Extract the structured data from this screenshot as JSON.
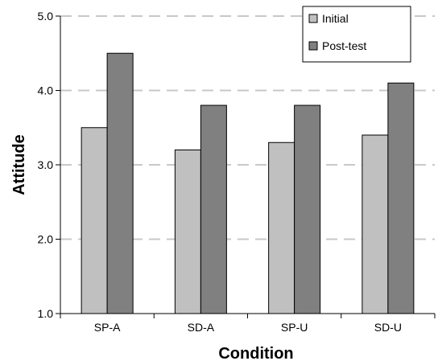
{
  "chart_data": {
    "type": "bar",
    "title": "",
    "xlabel": "Condition",
    "ylabel": "Attitude",
    "categories": [
      "SP-A",
      "SD-A",
      "SP-U",
      "SD-U"
    ],
    "series": [
      {
        "name": "Initial",
        "values": [
          3.5,
          3.2,
          3.3,
          3.4
        ],
        "color": "#c0c0c0"
      },
      {
        "name": "Post-test",
        "values": [
          4.5,
          3.8,
          3.8,
          4.1
        ],
        "color": "#808080"
      }
    ],
    "ylim": [
      1.0,
      5.0
    ],
    "yticks": [
      1.0,
      2.0,
      3.0,
      4.0,
      5.0
    ],
    "ytick_labels": [
      "1.0",
      "2.0",
      "3.0",
      "4.0",
      "5.0"
    ],
    "grid": "horizontal dashed",
    "legend_position": "top-right"
  }
}
